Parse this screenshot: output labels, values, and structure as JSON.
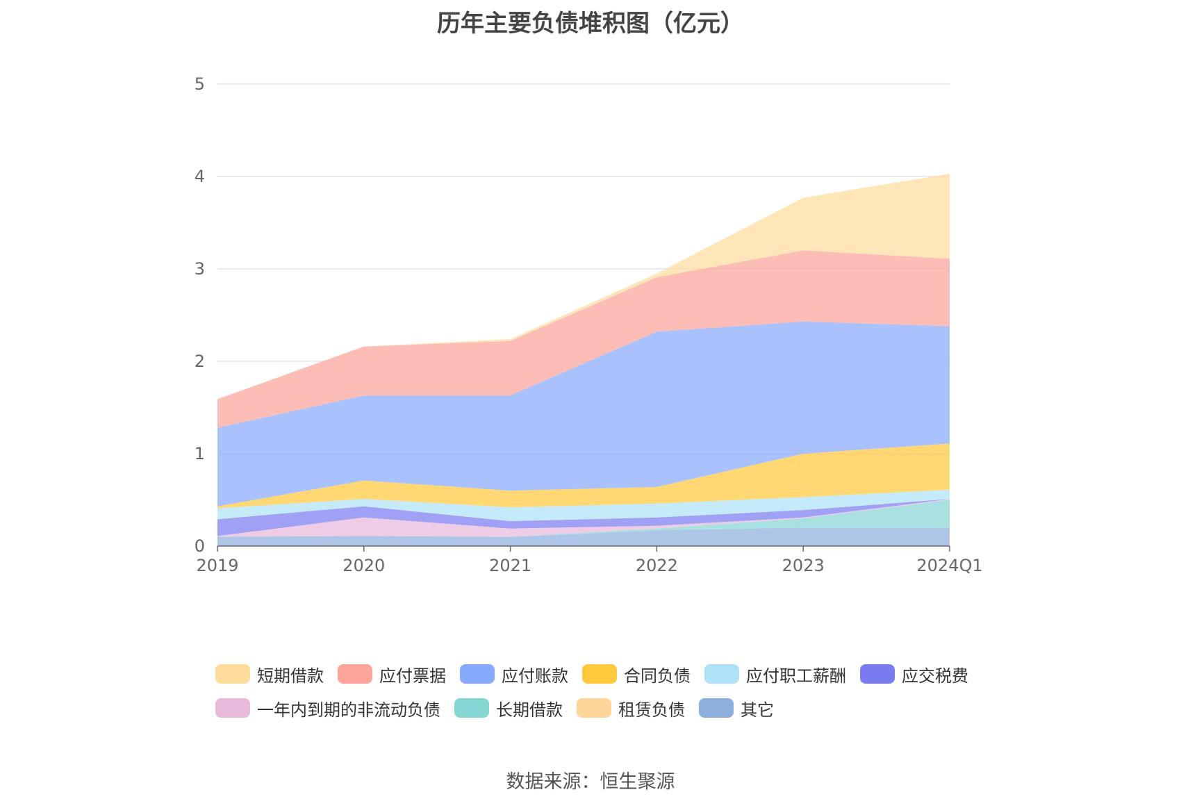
{
  "title": "历年主要负债堆积图（亿元）",
  "source": "数据来源：恒生聚源",
  "chart_data": {
    "type": "area",
    "stacked": true,
    "title": "历年主要负债堆积图（亿元）",
    "xlabel": "",
    "ylabel": "",
    "ylim": [
      0,
      5
    ],
    "yticks": [
      0,
      1,
      2,
      3,
      4,
      5
    ],
    "grid": true,
    "legend_position": "bottom",
    "categories": [
      "2019",
      "2020",
      "2021",
      "2022",
      "2023",
      "2024Q1"
    ],
    "series": [
      {
        "name": "其它",
        "color": "#8eaedc",
        "values": [
          0.1,
          0.11,
          0.1,
          0.17,
          0.2,
          0.2
        ]
      },
      {
        "name": "租赁负债",
        "color": "#ffd699",
        "values": [
          0.0,
          0.0,
          0.0,
          0.0,
          0.0,
          0.0
        ]
      },
      {
        "name": "长期借款",
        "color": "#86d6d4",
        "values": [
          0.0,
          0.0,
          0.0,
          0.02,
          0.1,
          0.3
        ]
      },
      {
        "name": "一年内到期的非流动负债",
        "color": "#e9b9db",
        "values": [
          0.01,
          0.2,
          0.09,
          0.03,
          0.01,
          0.01
        ]
      },
      {
        "name": "应交税费",
        "color": "#7b7bf0",
        "values": [
          0.18,
          0.12,
          0.08,
          0.09,
          0.08,
          0.0
        ]
      },
      {
        "name": "应付职工薪酬",
        "color": "#aee2f7",
        "values": [
          0.12,
          0.08,
          0.15,
          0.15,
          0.14,
          0.1
        ]
      },
      {
        "name": "合同负债",
        "color": "#ffc93d",
        "values": [
          0.02,
          0.2,
          0.18,
          0.18,
          0.47,
          0.5
        ]
      },
      {
        "name": "应付账款",
        "color": "#88aafc",
        "values": [
          0.85,
          0.92,
          1.03,
          1.68,
          1.43,
          1.27
        ]
      },
      {
        "name": "应付票据",
        "color": "#fba49a",
        "values": [
          0.31,
          0.53,
          0.59,
          0.59,
          0.77,
          0.73
        ]
      },
      {
        "name": "短期借款",
        "color": "#ffdc9c",
        "values": [
          0.0,
          0.0,
          0.02,
          0.04,
          0.57,
          0.92
        ]
      }
    ]
  },
  "legend": [
    [
      {
        "name": "短期借款",
        "color": "#ffdc9c"
      },
      {
        "name": "应付票据",
        "color": "#fba49a"
      },
      {
        "name": "应付账款",
        "color": "#88aafc"
      },
      {
        "name": "合同负债",
        "color": "#ffc93d"
      },
      {
        "name": "应付职工薪酬",
        "color": "#aee2f7"
      },
      {
        "name": "应交税费",
        "color": "#7b7bf0"
      }
    ],
    [
      {
        "name": "一年内到期的非流动负债",
        "color": "#e9b9db"
      },
      {
        "name": "长期借款",
        "color": "#86d6d4"
      },
      {
        "name": "租赁负债",
        "color": "#ffd699"
      },
      {
        "name": "其它",
        "color": "#8eaedc"
      }
    ]
  ]
}
